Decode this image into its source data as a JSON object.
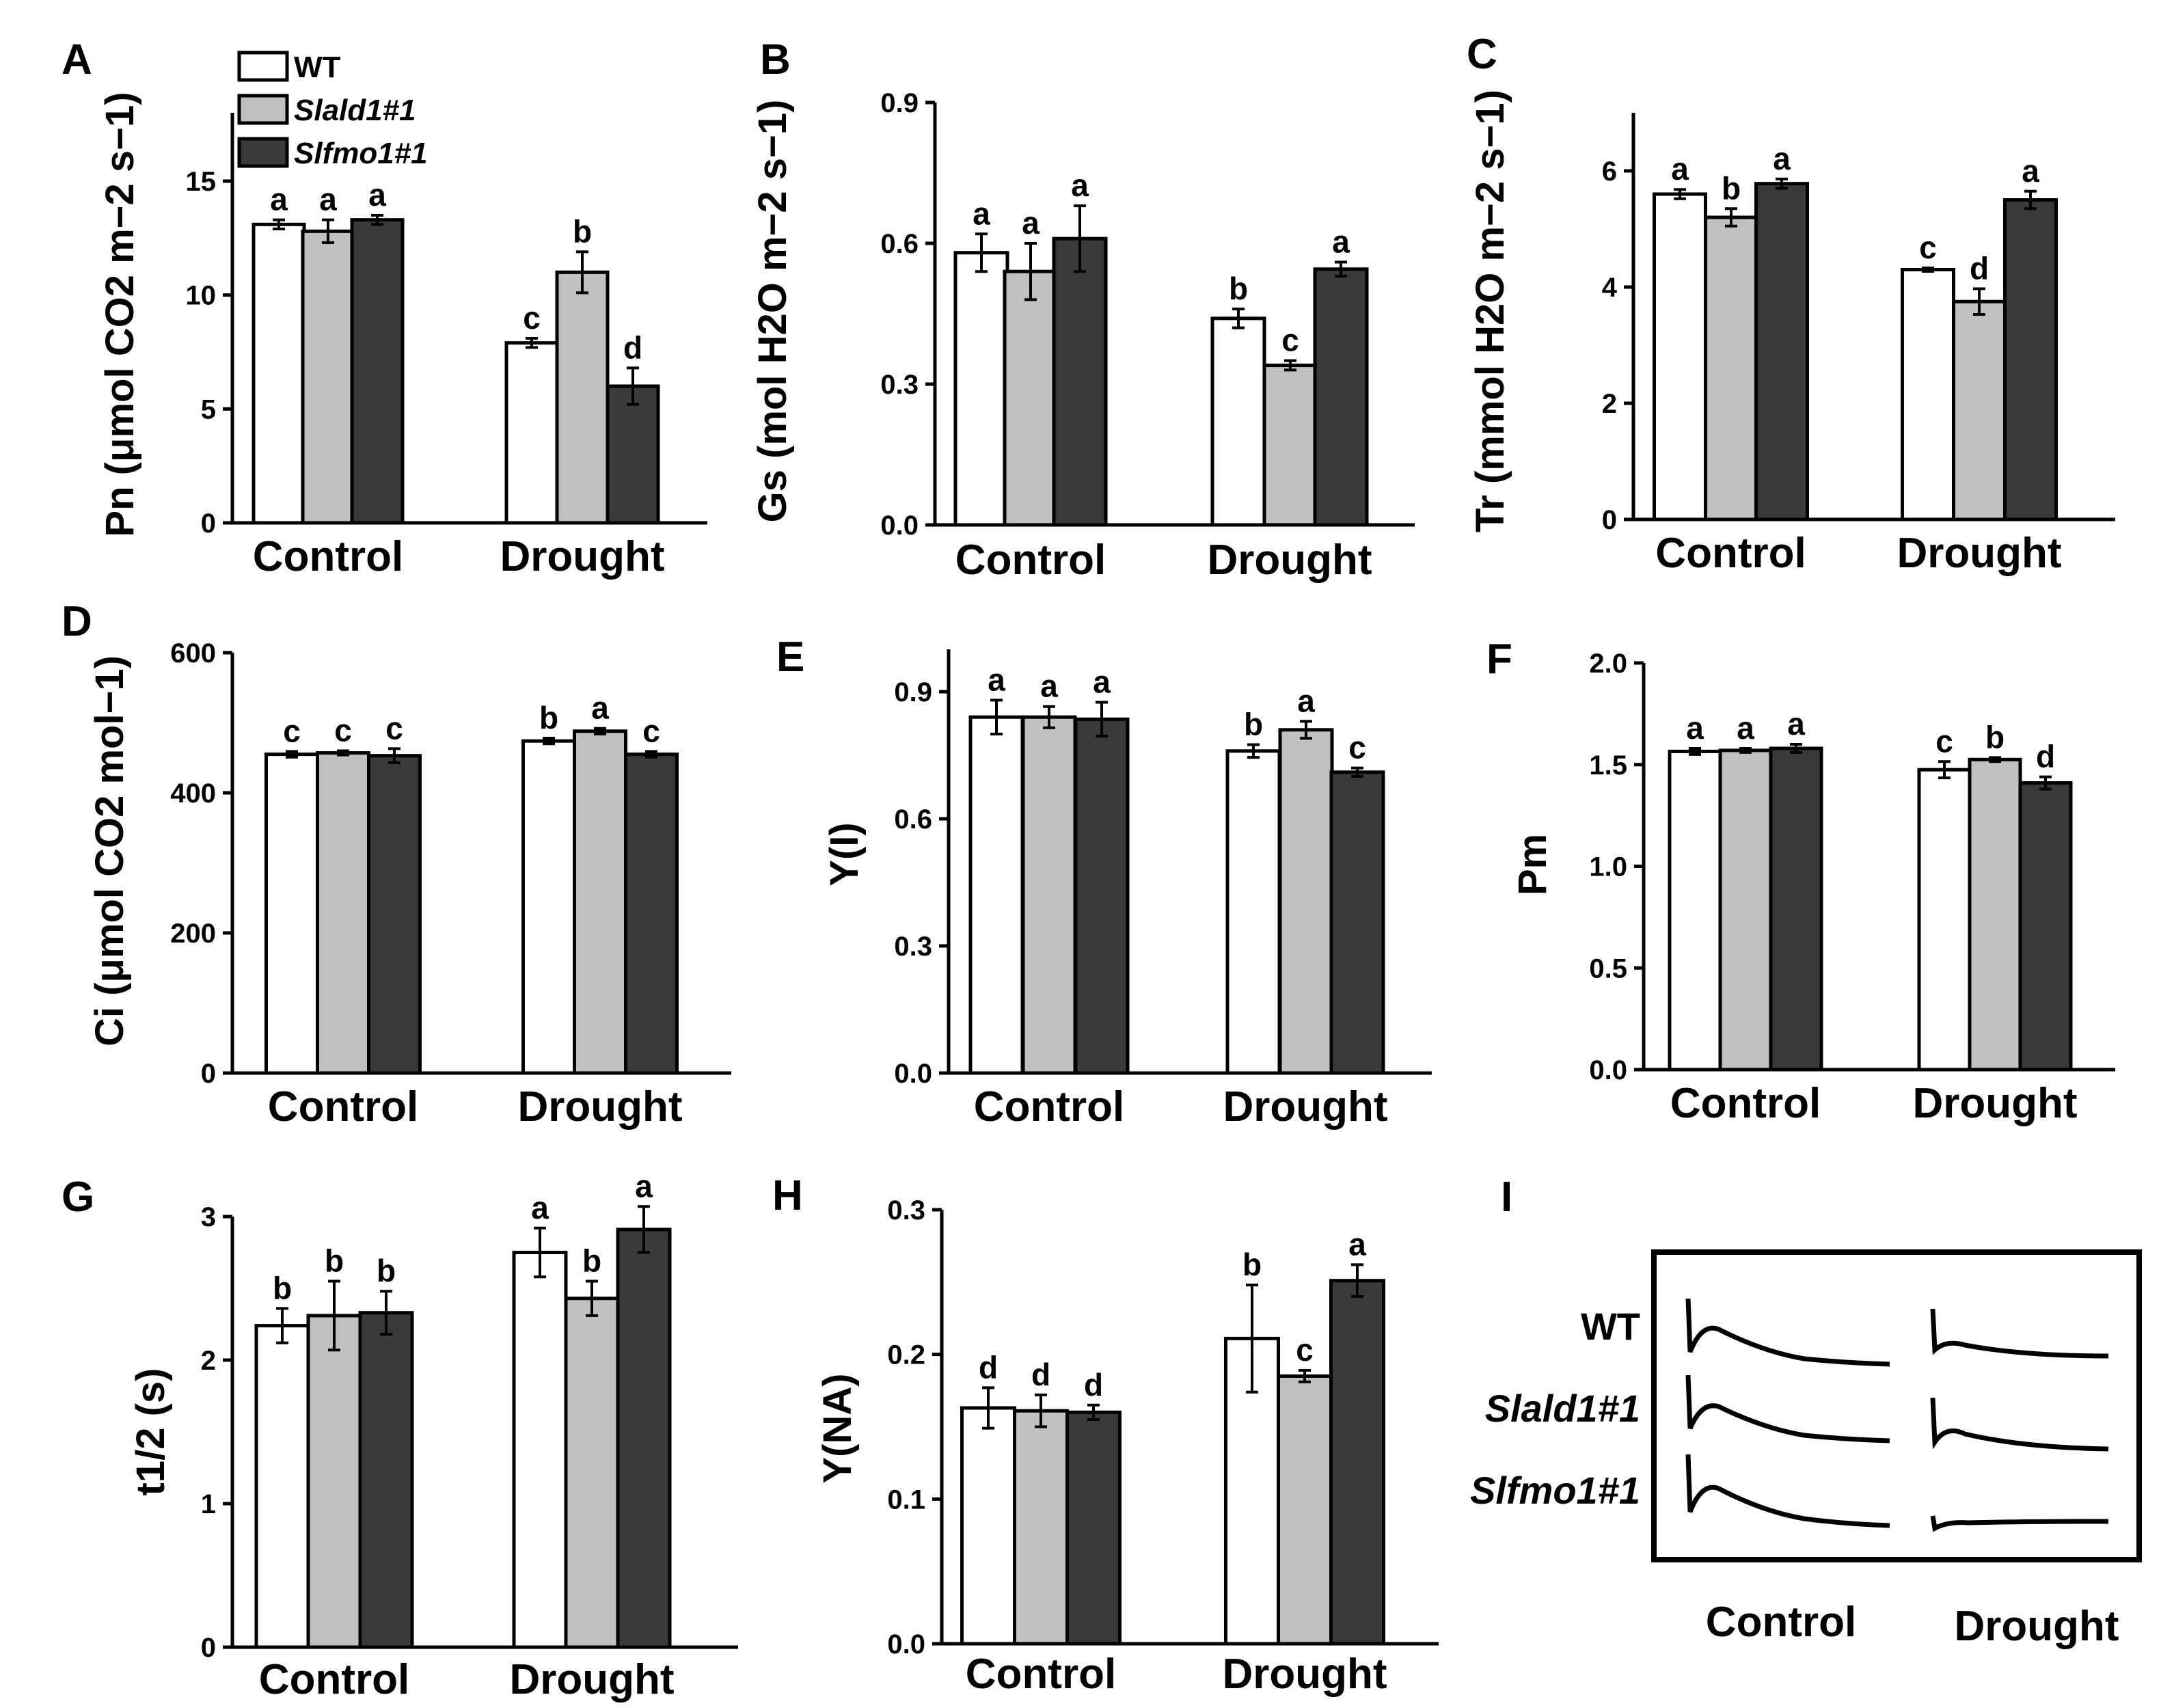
{
  "legend": [
    {
      "label": "WT",
      "color": "#ffffff"
    },
    {
      "label": "Slald1#1",
      "color": "#c0c0c0"
    },
    {
      "label": "Slfmo1#1",
      "color": "#3a3a3a"
    }
  ],
  "chart_data": [
    {
      "panel": "A",
      "type": "bar",
      "ylabel": "Pn (μmol CO2 m−2 s−1)",
      "ylim": [
        0,
        18
      ],
      "yticks": [
        0,
        5,
        10,
        15
      ],
      "categories": [
        "Control",
        "Drought"
      ],
      "series": [
        {
          "name": "WT",
          "values": [
            13.1,
            7.9
          ],
          "errors": [
            0.2,
            0.2
          ],
          "letters": [
            "a",
            "c"
          ]
        },
        {
          "name": "Slald1#1",
          "values": [
            12.8,
            11.0
          ],
          "errors": [
            0.5,
            0.9
          ],
          "letters": [
            "a",
            "b"
          ]
        },
        {
          "name": "Slfmo1#1",
          "values": [
            13.3,
            6.0
          ],
          "errors": [
            0.2,
            0.8
          ],
          "letters": [
            "a",
            "d"
          ]
        }
      ]
    },
    {
      "panel": "B",
      "type": "bar",
      "ylabel": "Gs (mol H2O m−2 s−1)",
      "ylim": [
        0,
        0.9
      ],
      "yticks": [
        "0.0",
        "0.3",
        "0.6",
        "0.9"
      ],
      "categories": [
        "Control",
        "Drought"
      ],
      "series": [
        {
          "name": "WT",
          "values": [
            0.58,
            0.44
          ],
          "errors": [
            0.04,
            0.02
          ],
          "letters": [
            "a",
            "b"
          ]
        },
        {
          "name": "Slald1#1",
          "values": [
            0.54,
            0.34
          ],
          "errors": [
            0.06,
            0.01
          ],
          "letters": [
            "a",
            "c"
          ]
        },
        {
          "name": "Slfmo1#1",
          "values": [
            0.61,
            0.545
          ],
          "errors": [
            0.07,
            0.015
          ],
          "letters": [
            "a",
            "a"
          ]
        }
      ]
    },
    {
      "panel": "C",
      "type": "bar",
      "ylabel": "Tr (mmol H2O m−2 s−1)",
      "ylim": [
        0,
        7
      ],
      "yticks": [
        0,
        2,
        4,
        6
      ],
      "categories": [
        "Control",
        "Drought"
      ],
      "series": [
        {
          "name": "WT",
          "values": [
            5.6,
            4.3
          ],
          "errors": [
            0.08,
            0.03
          ],
          "letters": [
            "a",
            "c"
          ]
        },
        {
          "name": "Slald1#1",
          "values": [
            5.2,
            3.75
          ],
          "errors": [
            0.15,
            0.22
          ],
          "letters": [
            "b",
            "d"
          ]
        },
        {
          "name": "Slfmo1#1",
          "values": [
            5.78,
            5.5
          ],
          "errors": [
            0.08,
            0.15
          ],
          "letters": [
            "a",
            "a"
          ]
        }
      ]
    },
    {
      "panel": "D",
      "type": "bar",
      "ylabel": "Ci (μmol CO2 mol−1)",
      "ylim": [
        0,
        600
      ],
      "yticks": [
        0,
        200,
        400,
        600
      ],
      "categories": [
        "Control",
        "Drought"
      ],
      "series": [
        {
          "name": "WT",
          "values": [
            455,
            474
          ],
          "errors": [
            4,
            4
          ],
          "letters": [
            "c",
            "b"
          ]
        },
        {
          "name": "Slald1#1",
          "values": [
            457,
            488
          ],
          "errors": [
            3,
            4
          ],
          "letters": [
            "c",
            "a"
          ]
        },
        {
          "name": "Slfmo1#1",
          "values": [
            453,
            455
          ],
          "errors": [
            10,
            4
          ],
          "letters": [
            "c",
            "c"
          ]
        }
      ]
    },
    {
      "panel": "E",
      "type": "bar",
      "ylabel": "Y(I)",
      "ylim": [
        0,
        1.0
      ],
      "yticks": [
        "0.0",
        "0.3",
        "0.6",
        "0.9"
      ],
      "categories": [
        "Control",
        "Drought"
      ],
      "series": [
        {
          "name": "WT",
          "values": [
            0.84,
            0.76
          ],
          "errors": [
            0.04,
            0.015
          ],
          "letters": [
            "a",
            "b"
          ]
        },
        {
          "name": "Slald1#1",
          "values": [
            0.84,
            0.81
          ],
          "errors": [
            0.025,
            0.02
          ],
          "letters": [
            "a",
            "a"
          ]
        },
        {
          "name": "Slfmo1#1",
          "values": [
            0.835,
            0.71
          ],
          "errors": [
            0.04,
            0.01
          ],
          "letters": [
            "a",
            "c"
          ]
        }
      ]
    },
    {
      "panel": "F",
      "type": "bar",
      "ylabel": "Pm",
      "ylim": [
        0,
        2.0
      ],
      "yticks": [
        "0.0",
        "0.5",
        "1.0",
        "1.5",
        "2.0"
      ],
      "categories": [
        "Control",
        "Drought"
      ],
      "series": [
        {
          "name": "WT",
          "values": [
            1.565,
            1.475
          ],
          "errors": [
            0.015,
            0.04
          ],
          "letters": [
            "a",
            "c"
          ]
        },
        {
          "name": "Slald1#1",
          "values": [
            1.57,
            1.525
          ],
          "errors": [
            0.01,
            0.01
          ],
          "letters": [
            "a",
            "b"
          ]
        },
        {
          "name": "Slfmo1#1",
          "values": [
            1.58,
            1.41
          ],
          "errors": [
            0.02,
            0.03
          ],
          "letters": [
            "a",
            "d"
          ]
        }
      ]
    },
    {
      "panel": "G",
      "type": "bar",
      "ylabel": "t1/2 (s)",
      "ylim": [
        0,
        3.0
      ],
      "yticks": [
        0,
        1,
        2,
        3
      ],
      "categories": [
        "Control",
        "Drought"
      ],
      "series": [
        {
          "name": "WT",
          "values": [
            2.24,
            2.75
          ],
          "errors": [
            0.12,
            0.17
          ],
          "letters": [
            "b",
            "a"
          ]
        },
        {
          "name": "Slald1#1",
          "values": [
            2.31,
            2.43
          ],
          "errors": [
            0.24,
            0.12
          ],
          "letters": [
            "b",
            "b"
          ]
        },
        {
          "name": "Slfmo1#1",
          "values": [
            2.33,
            2.91
          ],
          "errors": [
            0.15,
            0.16
          ],
          "letters": [
            "b",
            "a"
          ]
        }
      ]
    },
    {
      "panel": "H",
      "type": "bar",
      "ylabel": "Y(NA)",
      "ylim": [
        0,
        0.3
      ],
      "yticks": [
        "0.0",
        "0.1",
        "0.2",
        "0.3"
      ],
      "categories": [
        "Control",
        "Drought"
      ],
      "series": [
        {
          "name": "WT",
          "values": [
            0.163,
            0.211
          ],
          "errors": [
            0.014,
            0.037
          ],
          "letters": [
            "d",
            "b"
          ]
        },
        {
          "name": "Slald1#1",
          "values": [
            0.161,
            0.185
          ],
          "errors": [
            0.011,
            0.004
          ],
          "letters": [
            "d",
            "c"
          ]
        },
        {
          "name": "Slfmo1#1",
          "values": [
            0.16,
            0.251
          ],
          "errors": [
            0.005,
            0.011
          ],
          "letters": [
            "d",
            "a"
          ]
        }
      ]
    }
  ],
  "panel_i": {
    "letter": "I",
    "rows": [
      "WT",
      "Slald1#1",
      "Slfmo1#1"
    ],
    "columns": [
      "Control",
      "Drought"
    ]
  }
}
